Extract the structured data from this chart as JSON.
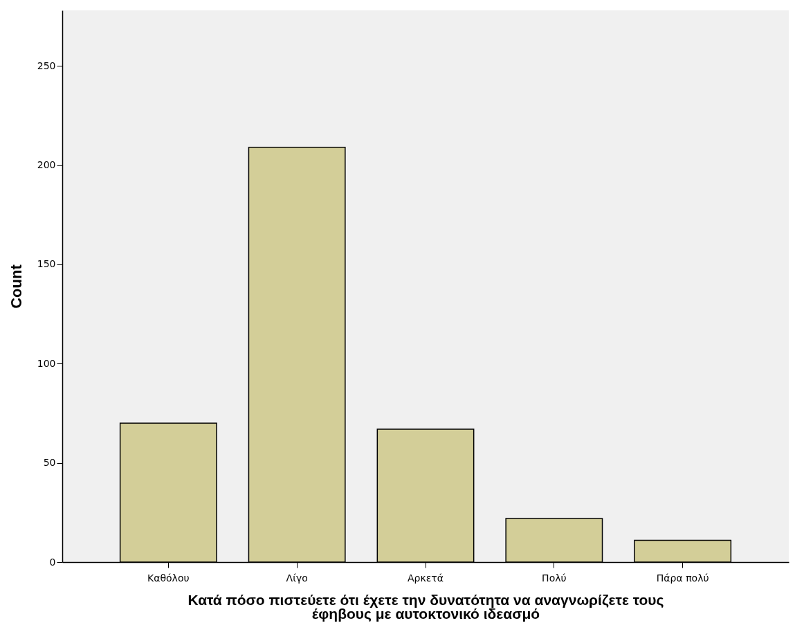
{
  "chart_data": {
    "type": "bar",
    "xlabel": "Κατά πόσο πιστεύετε ότι έχετε την  δυνατότητα να αναγνωρίζετε  τους έφηβους με αυτοκτονικό ιδεασμό",
    "ylabel": "Count",
    "categories": [
      "Καθόλου",
      "Λίγο",
      "Αρκετά",
      "Πολύ",
      "Πάρα πολύ"
    ],
    "values": [
      70,
      209,
      67,
      22,
      11
    ],
    "color": "#d3ce98",
    "ylim": [
      0,
      278
    ],
    "yticks": [
      0,
      50,
      100,
      150,
      200,
      250
    ],
    "grid": false
  }
}
